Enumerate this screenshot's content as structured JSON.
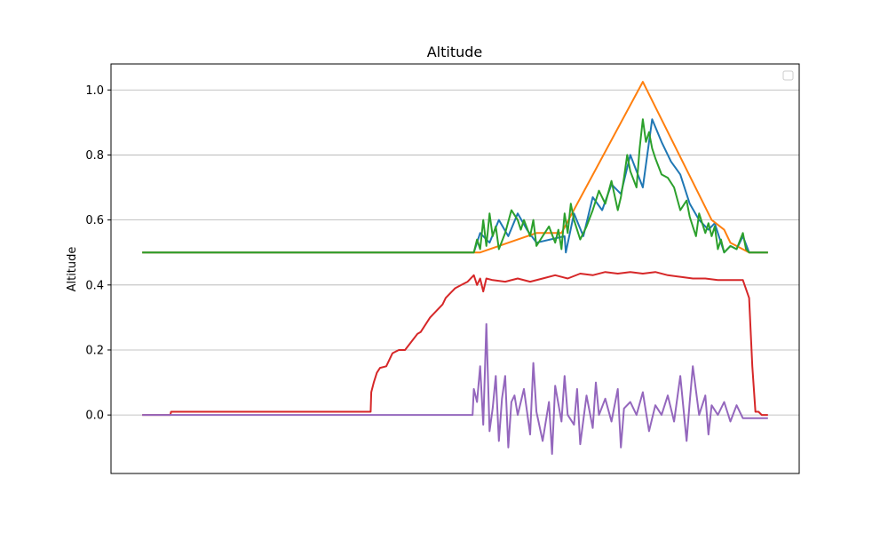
{
  "chart_data": {
    "type": "line",
    "title": "Altitude",
    "xlabel": "",
    "ylabel": "Altitude",
    "ylim": [
      -0.18,
      1.08
    ],
    "xlim": [
      -0.05,
      1.05
    ],
    "yticks": [
      0.0,
      0.2,
      0.4,
      0.6,
      0.8,
      1.0
    ],
    "ytick_labels": [
      "0.0",
      "0.2",
      "0.4",
      "0.6",
      "0.8",
      "1.0"
    ],
    "grid": "horizontal",
    "legend": "top-right (empty)",
    "colors": {
      "blue": "#1f77b4",
      "orange": "#ff7f0e",
      "green": "#2ca02c",
      "red": "#d62728",
      "purple": "#9467bd"
    },
    "series": [
      {
        "color": "blue",
        "x": [
          0.0,
          0.53,
          0.54,
          0.555,
          0.57,
          0.585,
          0.6,
          0.615,
          0.63,
          0.675,
          0.677,
          0.69,
          0.705,
          0.72,
          0.735,
          0.75,
          0.765,
          0.78,
          0.8,
          0.815,
          0.83,
          0.845,
          0.86,
          0.875,
          0.89,
          0.905,
          0.915,
          0.92,
          0.93,
          0.94,
          0.95,
          0.96,
          0.97,
          1.0
        ],
        "y": [
          0.5,
          0.5,
          0.56,
          0.53,
          0.6,
          0.55,
          0.62,
          0.57,
          0.53,
          0.55,
          0.5,
          0.62,
          0.55,
          0.67,
          0.63,
          0.71,
          0.68,
          0.8,
          0.7,
          0.91,
          0.84,
          0.78,
          0.74,
          0.65,
          0.6,
          0.57,
          0.59,
          0.56,
          0.5,
          0.52,
          0.51,
          0.55,
          0.5,
          0.5
        ]
      },
      {
        "color": "orange",
        "x": [
          0.0,
          0.53,
          0.54,
          0.63,
          0.67,
          0.8,
          0.91,
          0.93,
          0.94,
          0.97,
          1.0
        ],
        "y": [
          0.5,
          0.5,
          0.5,
          0.56,
          0.56,
          1.025,
          0.6,
          0.57,
          0.53,
          0.5,
          0.5
        ]
      },
      {
        "color": "green",
        "x": [
          0.0,
          0.53,
          0.535,
          0.54,
          0.545,
          0.55,
          0.555,
          0.56,
          0.565,
          0.57,
          0.58,
          0.59,
          0.6,
          0.605,
          0.61,
          0.62,
          0.625,
          0.63,
          0.64,
          0.65,
          0.66,
          0.665,
          0.67,
          0.675,
          0.68,
          0.685,
          0.69,
          0.7,
          0.71,
          0.72,
          0.73,
          0.74,
          0.75,
          0.76,
          0.765,
          0.77,
          0.775,
          0.78,
          0.79,
          0.795,
          0.8,
          0.805,
          0.81,
          0.815,
          0.82,
          0.83,
          0.84,
          0.85,
          0.86,
          0.87,
          0.875,
          0.88,
          0.885,
          0.89,
          0.9,
          0.905,
          0.91,
          0.915,
          0.92,
          0.925,
          0.93,
          0.94,
          0.95,
          0.96,
          0.965,
          0.97,
          1.0
        ],
        "y": [
          0.5,
          0.5,
          0.54,
          0.51,
          0.6,
          0.52,
          0.62,
          0.55,
          0.58,
          0.51,
          0.56,
          0.63,
          0.6,
          0.57,
          0.6,
          0.55,
          0.6,
          0.52,
          0.55,
          0.58,
          0.53,
          0.57,
          0.51,
          0.62,
          0.56,
          0.65,
          0.6,
          0.54,
          0.58,
          0.63,
          0.69,
          0.65,
          0.72,
          0.63,
          0.67,
          0.73,
          0.8,
          0.75,
          0.7,
          0.82,
          0.91,
          0.84,
          0.87,
          0.82,
          0.79,
          0.74,
          0.73,
          0.7,
          0.63,
          0.66,
          0.61,
          0.58,
          0.55,
          0.62,
          0.56,
          0.59,
          0.55,
          0.58,
          0.51,
          0.54,
          0.5,
          0.52,
          0.51,
          0.56,
          0.51,
          0.5,
          0.5
        ]
      },
      {
        "color": "red",
        "x": [
          0.0,
          0.045,
          0.046,
          0.365,
          0.366,
          0.37,
          0.375,
          0.38,
          0.39,
          0.4,
          0.41,
          0.42,
          0.44,
          0.445,
          0.46,
          0.48,
          0.485,
          0.5,
          0.51,
          0.52,
          0.53,
          0.535,
          0.54,
          0.545,
          0.55,
          0.56,
          0.58,
          0.6,
          0.62,
          0.64,
          0.66,
          0.68,
          0.7,
          0.72,
          0.74,
          0.76,
          0.78,
          0.8,
          0.82,
          0.84,
          0.86,
          0.88,
          0.9,
          0.92,
          0.94,
          0.96,
          0.97,
          0.975,
          0.98,
          0.985,
          0.99,
          1.0
        ],
        "y": [
          0.0,
          0.0,
          0.01,
          0.01,
          0.07,
          0.1,
          0.13,
          0.145,
          0.15,
          0.19,
          0.2,
          0.2,
          0.25,
          0.255,
          0.3,
          0.34,
          0.36,
          0.39,
          0.4,
          0.41,
          0.43,
          0.4,
          0.42,
          0.38,
          0.42,
          0.415,
          0.41,
          0.42,
          0.41,
          0.42,
          0.43,
          0.42,
          0.435,
          0.43,
          0.44,
          0.435,
          0.44,
          0.435,
          0.44,
          0.43,
          0.425,
          0.42,
          0.42,
          0.415,
          0.415,
          0.415,
          0.36,
          0.15,
          0.01,
          0.01,
          0.0,
          0.0
        ]
      },
      {
        "color": "purple",
        "x": [
          0.0,
          0.528,
          0.53,
          0.535,
          0.54,
          0.545,
          0.55,
          0.555,
          0.56,
          0.565,
          0.57,
          0.575,
          0.58,
          0.585,
          0.59,
          0.595,
          0.6,
          0.61,
          0.62,
          0.625,
          0.63,
          0.64,
          0.65,
          0.655,
          0.66,
          0.67,
          0.675,
          0.68,
          0.69,
          0.695,
          0.7,
          0.71,
          0.72,
          0.725,
          0.73,
          0.74,
          0.75,
          0.76,
          0.765,
          0.77,
          0.78,
          0.79,
          0.8,
          0.81,
          0.82,
          0.83,
          0.84,
          0.85,
          0.86,
          0.87,
          0.875,
          0.88,
          0.89,
          0.9,
          0.905,
          0.91,
          0.92,
          0.93,
          0.94,
          0.95,
          0.96,
          0.965,
          0.97,
          1.0
        ],
        "y": [
          0.0,
          0.0,
          0.08,
          0.04,
          0.15,
          -0.03,
          0.28,
          -0.05,
          0.02,
          0.12,
          -0.08,
          0.05,
          0.12,
          -0.1,
          0.04,
          0.06,
          0.0,
          0.08,
          -0.06,
          0.16,
          0.01,
          -0.08,
          0.04,
          -0.12,
          0.09,
          -0.02,
          0.12,
          0.0,
          -0.03,
          0.08,
          -0.09,
          0.06,
          -0.04,
          0.1,
          0.0,
          0.05,
          -0.02,
          0.08,
          -0.1,
          0.02,
          0.04,
          0.0,
          0.07,
          -0.05,
          0.03,
          0.0,
          0.06,
          -0.02,
          0.12,
          -0.08,
          0.04,
          0.15,
          0.0,
          0.06,
          -0.06,
          0.03,
          0.0,
          0.04,
          -0.02,
          0.03,
          -0.01,
          -0.01,
          -0.01,
          -0.01
        ]
      }
    ]
  }
}
